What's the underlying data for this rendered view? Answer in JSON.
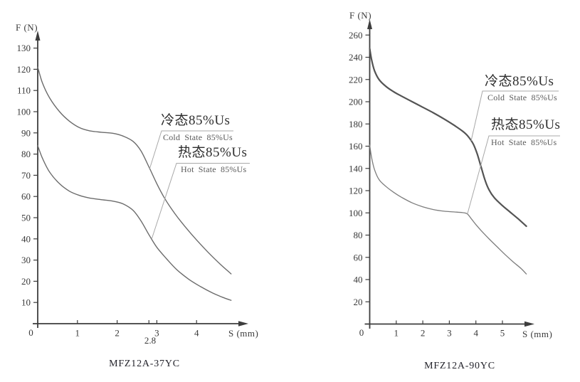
{
  "page": {
    "background": "#ffffff"
  },
  "chart_data": [
    {
      "type": "line",
      "title": "MFZ12A-37YC",
      "xlabel": "S (mm)",
      "ylabel": "F (N)",
      "origin_label": "0",
      "x_ticks": [
        1,
        2,
        3,
        4
      ],
      "extra_x_tick": {
        "value": 2.8,
        "label": "2.8"
      },
      "y_ticks": [
        10,
        20,
        30,
        40,
        50,
        60,
        70,
        80,
        90,
        100,
        110,
        120,
        130
      ],
      "xlim": [
        0,
        4.9
      ],
      "ylim": [
        0,
        138
      ],
      "grid": false,
      "legend_position": "callouts-right",
      "axis_color": "#3d3d3d",
      "leader_color": "#a8a8a8",
      "series": [
        {
          "label_cn": "冷态85%Us",
          "label_en": "Cold State 85%Us",
          "color": "#6b6b6b",
          "line_width": 1.4,
          "callout_s": 2.82,
          "points": [
            [
              0,
              121
            ],
            [
              0.12,
              113.5
            ],
            [
              0.3,
              106.5
            ],
            [
              0.55,
              100
            ],
            [
              0.8,
              95.5
            ],
            [
              1.05,
              92.5
            ],
            [
              1.3,
              91
            ],
            [
              1.6,
              90.3
            ],
            [
              1.9,
              89.8
            ],
            [
              2.15,
              88.5
            ],
            [
              2.4,
              86
            ],
            [
              2.6,
              81.5
            ],
            [
              2.8,
              74
            ],
            [
              3.0,
              66
            ],
            [
              3.2,
              59
            ],
            [
              3.45,
              52
            ],
            [
              3.7,
              46
            ],
            [
              4.0,
              39.5
            ],
            [
              4.3,
              33.5
            ],
            [
              4.6,
              28
            ],
            [
              4.87,
              23.5
            ]
          ]
        },
        {
          "label_cn": "热态85%Us",
          "label_en": "Hot State 85%Us",
          "color": "#6b6b6b",
          "line_width": 1.4,
          "callout_s": 2.87,
          "points": [
            [
              0,
              84
            ],
            [
              0.12,
              78
            ],
            [
              0.3,
              71.5
            ],
            [
              0.55,
              66
            ],
            [
              0.8,
              62.5
            ],
            [
              1.05,
              60.5
            ],
            [
              1.3,
              59.3
            ],
            [
              1.6,
              58.5
            ],
            [
              1.9,
              57.8
            ],
            [
              2.15,
              56.5
            ],
            [
              2.4,
              53.5
            ],
            [
              2.6,
              48.5
            ],
            [
              2.8,
              42
            ],
            [
              3.0,
              36
            ],
            [
              3.25,
              30.5
            ],
            [
              3.5,
              25.5
            ],
            [
              3.8,
              21
            ],
            [
              4.1,
              17.5
            ],
            [
              4.4,
              14.5
            ],
            [
              4.65,
              12.5
            ],
            [
              4.87,
              11
            ]
          ]
        }
      ]
    },
    {
      "type": "line",
      "title": "MFZ12A-90YC",
      "xlabel": "S (mm)",
      "ylabel": "F (N)",
      "origin_label": "0",
      "x_ticks": [
        1,
        2,
        3,
        4,
        5
      ],
      "extra_x_tick": null,
      "y_ticks": [
        20,
        40,
        60,
        80,
        100,
        120,
        140,
        160,
        180,
        200,
        220,
        240,
        260
      ],
      "xlim": [
        0,
        5.95
      ],
      "ylim": [
        0,
        272
      ],
      "grid": false,
      "legend_position": "callouts-right",
      "axis_color": "#3d3d3d",
      "leader_color": "#a8a8a8",
      "series": [
        {
          "label_cn": "冷态85%Us",
          "label_en": "Cold State 85%Us",
          "color": "#545454",
          "line_width": 2.2,
          "callout_s": 3.82,
          "points": [
            [
              0,
              248
            ],
            [
              0.07,
              238
            ],
            [
              0.18,
              228
            ],
            [
              0.35,
              220
            ],
            [
              0.6,
              214
            ],
            [
              0.9,
              209
            ],
            [
              1.2,
              205
            ],
            [
              1.6,
              200
            ],
            [
              2.0,
              195
            ],
            [
              2.4,
              190
            ],
            [
              2.8,
              184.5
            ],
            [
              3.2,
              178.5
            ],
            [
              3.5,
              173.5
            ],
            [
              3.7,
              169
            ],
            [
              3.9,
              162
            ],
            [
              4.05,
              153
            ],
            [
              4.2,
              141
            ],
            [
              4.35,
              129
            ],
            [
              4.5,
              120.5
            ],
            [
              4.7,
              113.5
            ],
            [
              5.0,
              106.5
            ],
            [
              5.3,
              100.5
            ],
            [
              5.6,
              94.5
            ],
            [
              5.9,
              88
            ]
          ]
        },
        {
          "label_cn": "热态85%Us",
          "label_en": "Hot State 85%Us",
          "color": "#7d7d7d",
          "line_width": 1.3,
          "callout_s": 3.68,
          "points": [
            [
              0,
              161
            ],
            [
              0.07,
              150
            ],
            [
              0.18,
              139
            ],
            [
              0.35,
              130
            ],
            [
              0.6,
              124
            ],
            [
              0.9,
              118.5
            ],
            [
              1.2,
              114
            ],
            [
              1.6,
              109
            ],
            [
              2.0,
              105.5
            ],
            [
              2.4,
              103
            ],
            [
              2.8,
              101.5
            ],
            [
              3.2,
              100.8
            ],
            [
              3.5,
              100.2
            ],
            [
              3.68,
              99
            ],
            [
              3.85,
              94
            ],
            [
              4.0,
              89.5
            ],
            [
              4.2,
              84
            ],
            [
              4.5,
              76.5
            ],
            [
              4.8,
              69.5
            ],
            [
              5.1,
              62.5
            ],
            [
              5.4,
              56
            ],
            [
              5.7,
              50
            ],
            [
              5.9,
              45
            ]
          ]
        }
      ]
    }
  ]
}
